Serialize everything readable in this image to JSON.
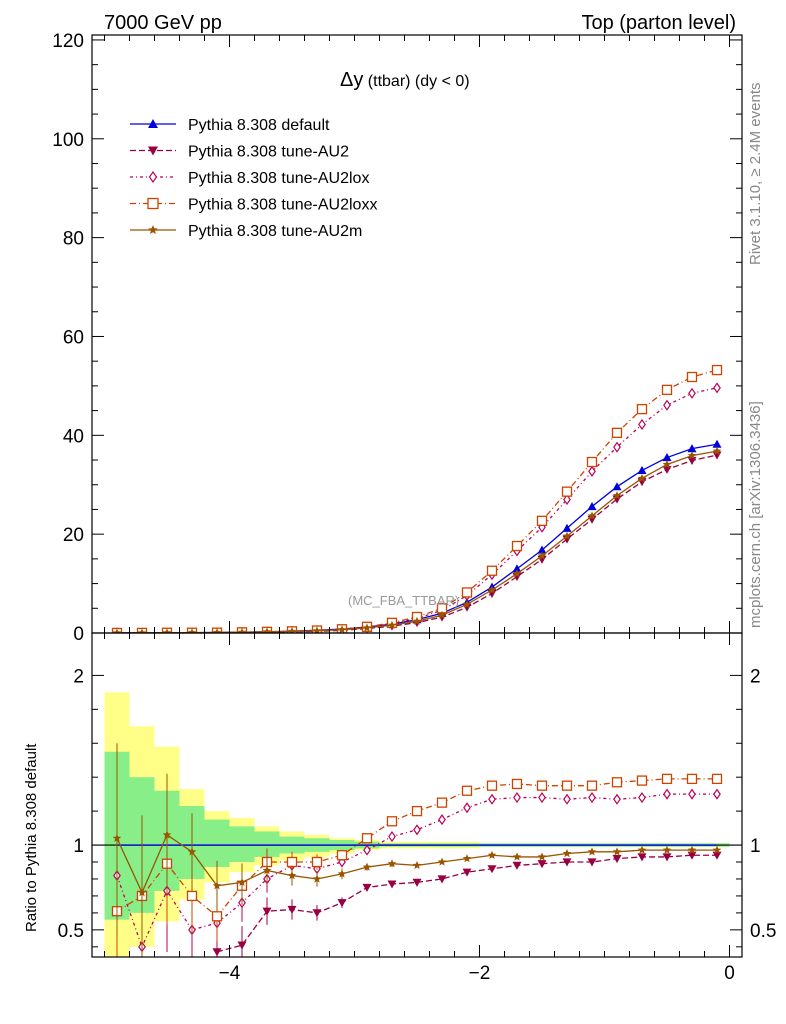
{
  "header": {
    "left": "7000 GeV pp",
    "right": "Top (parton level)"
  },
  "side_labels": {
    "rivet": "Rivet 3.1.10, ≥ 2.4M events",
    "mcplots": "mcplots.cern.ch [arXiv:1306.3436]"
  },
  "chart_data": {
    "type": "line",
    "title_symbol": "Δy",
    "title_rest": " (ttbar) (dy < 0)",
    "watermark": "(MC_FBA_TTBAR)",
    "xlim": [
      -5.1,
      0.1
    ],
    "x_ticks": [
      -4,
      -2,
      0
    ],
    "x_tick_labels": [
      "−4",
      "−2",
      "0"
    ],
    "main": {
      "ylim": [
        0,
        121
      ],
      "y_ticks": [
        0,
        20,
        40,
        60,
        80,
        100,
        120
      ],
      "y_tick_labels": [
        "0",
        "20",
        "40",
        "60",
        "80",
        "100",
        "120"
      ]
    },
    "ratio": {
      "ylabel": "Ratio to Pythia 8.308 default",
      "ylim": [
        0.34,
        2.25
      ],
      "y_ticks": [
        0.5,
        1,
        2
      ],
      "y_tick_labels": [
        "0.5",
        "1",
        "2"
      ]
    },
    "x": [
      -4.9,
      -4.7,
      -4.5,
      -4.3,
      -4.1,
      -3.9,
      -3.7,
      -3.5,
      -3.3,
      -3.1,
      -2.9,
      -2.7,
      -2.5,
      -2.3,
      -2.1,
      -1.9,
      -1.7,
      -1.5,
      -1.3,
      -1.1,
      -0.9,
      -0.7,
      -0.5,
      -0.3,
      -0.1
    ],
    "series": [
      {
        "name": "Pythia 8.308 default",
        "color": "#0000dd",
        "marker": "triangle-up",
        "dash": "",
        "values": [
          0.02,
          0.03,
          0.05,
          0.08,
          0.12,
          0.18,
          0.26,
          0.38,
          0.55,
          0.8,
          1.2,
          1.8,
          2.7,
          4.0,
          6.2,
          9.3,
          13.0,
          16.8,
          21.2,
          25.6,
          29.6,
          32.9,
          35.5,
          37.3,
          38.2
        ],
        "ratio": [
          1,
          1,
          1,
          1,
          1,
          1,
          1,
          1,
          1,
          1,
          1,
          1,
          1,
          1,
          1,
          1,
          1,
          1,
          1,
          1,
          1,
          1,
          1,
          1,
          1
        ]
      },
      {
        "name": "Pythia 8.308 tune-AU2",
        "color": "#990044",
        "marker": "triangle-down",
        "dash": "6,3",
        "values": [
          0.02,
          0.02,
          0.03,
          0.03,
          0.04,
          0.07,
          0.16,
          0.23,
          0.33,
          0.53,
          0.9,
          1.39,
          2.1,
          3.2,
          5.2,
          8.0,
          11.4,
          14.9,
          19.0,
          23.0,
          27.1,
          30.6,
          33.1,
          34.9,
          36.0
        ],
        "ratio": [
          null,
          null,
          null,
          null,
          0.37,
          0.41,
          0.61,
          0.62,
          0.6,
          0.66,
          0.75,
          0.77,
          0.78,
          0.8,
          0.84,
          0.86,
          0.88,
          0.89,
          0.9,
          0.9,
          0.92,
          0.93,
          0.93,
          0.94,
          0.94
        ]
      },
      {
        "name": "Pythia 8.308 tune-AU2lox",
        "color": "#bb0055",
        "marker": "diamond",
        "dash": "3,3,1,3",
        "values": [
          0.02,
          0.01,
          0.04,
          0.04,
          0.07,
          0.12,
          0.21,
          0.34,
          0.47,
          0.72,
          1.16,
          1.89,
          2.95,
          4.6,
          7.6,
          11.8,
          16.6,
          21.4,
          27.0,
          32.7,
          37.6,
          42.2,
          46.1,
          48.5,
          49.6
        ],
        "ratio": [
          0.82,
          0.4,
          0.73,
          0.5,
          0.54,
          0.66,
          0.8,
          0.88,
          0.86,
          0.9,
          0.97,
          1.05,
          1.09,
          1.15,
          1.22,
          1.27,
          1.28,
          1.28,
          1.27,
          1.28,
          1.27,
          1.28,
          1.3,
          1.3,
          1.3
        ]
      },
      {
        "name": "Pythia 8.308 tune-AU2loxx",
        "color": "#cc4400",
        "marker": "square",
        "dash": "6,3,1,3",
        "values": [
          0.01,
          0.02,
          0.05,
          0.06,
          0.07,
          0.14,
          0.24,
          0.34,
          0.5,
          0.75,
          1.25,
          2.06,
          3.24,
          5.0,
          8.2,
          12.6,
          17.6,
          22.7,
          28.6,
          34.6,
          40.5,
          45.3,
          49.2,
          51.8,
          53.2
        ],
        "ratio": [
          0.61,
          0.7,
          0.89,
          0.7,
          0.58,
          0.76,
          0.9,
          0.9,
          0.9,
          0.94,
          1.04,
          1.14,
          1.2,
          1.25,
          1.32,
          1.35,
          1.36,
          1.35,
          1.35,
          1.35,
          1.37,
          1.38,
          1.39,
          1.39,
          1.39
        ]
      },
      {
        "name": "Pythia 8.308 tune-AU2m",
        "color": "#995500",
        "marker": "star",
        "dash": "",
        "values": [
          0.02,
          0.03,
          0.06,
          0.08,
          0.09,
          0.14,
          0.22,
          0.31,
          0.44,
          0.67,
          1.04,
          1.58,
          2.37,
          3.6,
          5.8,
          8.7,
          12.0,
          15.6,
          19.6,
          23.7,
          27.8,
          31.3,
          34.1,
          35.9,
          36.8
        ],
        "ratio": [
          1.04,
          0.72,
          1.06,
          0.96,
          0.76,
          0.78,
          0.85,
          0.82,
          0.8,
          0.83,
          0.87,
          0.89,
          0.88,
          0.9,
          0.92,
          0.94,
          0.93,
          0.93,
          0.95,
          0.96,
          0.96,
          0.97,
          0.97,
          0.97,
          0.97
        ]
      }
    ],
    "bands": {
      "inner_color": "#88ee88",
      "outer_color": "#ffff88",
      "inner": [
        [
          0.56,
          1.55
        ],
        [
          0.6,
          1.4
        ],
        [
          0.73,
          1.32
        ],
        [
          0.8,
          1.23
        ],
        [
          0.87,
          1.15
        ],
        [
          0.9,
          1.11
        ],
        [
          0.93,
          1.08
        ],
        [
          0.95,
          1.05
        ],
        [
          0.96,
          1.04
        ],
        [
          0.97,
          1.03
        ],
        [
          0.98,
          1.02
        ],
        [
          0.99,
          1.01
        ],
        [
          0.99,
          1.01
        ],
        [
          0.99,
          1.01
        ],
        [
          0.99,
          1.01
        ],
        [
          0.99,
          1.01
        ],
        [
          0.99,
          1.01
        ],
        [
          0.99,
          1.01
        ],
        [
          0.99,
          1.01
        ],
        [
          0.99,
          1.01
        ],
        [
          0.99,
          1.01
        ],
        [
          0.99,
          1.01
        ],
        [
          0.99,
          1.01
        ],
        [
          0.99,
          1.01
        ],
        [
          0.99,
          1.01
        ]
      ],
      "outer": [
        [
          0.3,
          1.9
        ],
        [
          0.4,
          1.7
        ],
        [
          0.55,
          1.58
        ],
        [
          0.68,
          1.33
        ],
        [
          0.78,
          1.2
        ],
        [
          0.84,
          1.16
        ],
        [
          0.88,
          1.11
        ],
        [
          0.91,
          1.08
        ],
        [
          0.93,
          1.06
        ],
        [
          0.95,
          1.04
        ],
        [
          0.97,
          1.03
        ],
        [
          0.98,
          1.02
        ],
        [
          0.98,
          1.02
        ],
        [
          0.98,
          1.02
        ],
        [
          0.98,
          1.02
        ],
        [
          0.99,
          1.01
        ],
        [
          0.99,
          1.01
        ],
        [
          0.99,
          1.01
        ],
        [
          0.99,
          1.01
        ],
        [
          0.99,
          1.01
        ],
        [
          0.99,
          1.01
        ],
        [
          0.99,
          1.01
        ],
        [
          0.99,
          1.01
        ],
        [
          0.99,
          1.01
        ],
        [
          0.99,
          1.01
        ]
      ]
    },
    "legend_position": "top-left",
    "grid": false
  }
}
